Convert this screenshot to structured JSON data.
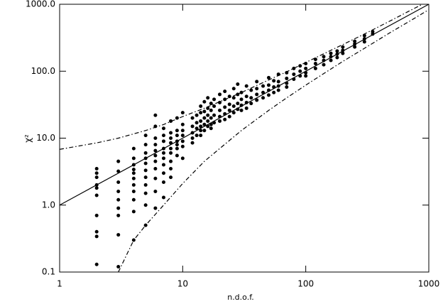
{
  "chart_data": {
    "type": "scatter",
    "xlabel": "n.d.o.f.",
    "ylabel": "χ²",
    "xscale": "log",
    "yscale": "log",
    "xlim": [
      1,
      1000
    ],
    "ylim": [
      0.1,
      1000
    ],
    "xticks": [
      1,
      10,
      100,
      1000
    ],
    "yticks": [
      0.1,
      {
        "value": 1,
        "label": "1.0"
      },
      {
        "value": 10,
        "label": "10.0"
      },
      {
        "value": 100,
        "label": "100.0"
      },
      {
        "value": 1000,
        "label": "1000.0"
      }
    ],
    "series": [
      {
        "type": "scatter",
        "color": "#000000",
        "x": [
          2,
          2,
          2,
          2,
          2,
          2,
          2,
          2,
          2,
          2,
          3,
          3,
          3,
          3,
          3,
          3,
          3,
          3,
          3,
          4,
          4,
          4,
          4,
          4,
          4,
          4,
          4,
          4,
          4,
          4,
          5,
          5,
          5,
          5,
          5,
          5,
          5,
          5,
          5,
          5,
          5,
          6,
          6,
          6,
          6,
          6,
          6,
          6,
          6,
          6,
          6,
          6,
          7,
          7,
          7,
          7,
          7,
          7,
          7,
          7,
          7,
          7,
          8,
          8,
          8,
          8,
          8,
          8,
          8,
          8,
          8,
          9,
          9,
          9,
          9,
          9,
          9,
          9,
          10,
          10,
          10,
          10,
          10,
          10,
          10,
          12,
          12,
          12,
          12,
          12,
          13,
          13,
          13,
          13,
          14,
          14,
          14,
          14,
          14,
          14,
          15,
          15,
          15,
          15,
          15,
          16,
          16,
          16,
          16,
          16,
          17,
          17,
          17,
          17,
          17,
          18,
          18,
          18,
          18,
          20,
          20,
          20,
          20,
          20,
          22,
          22,
          22,
          22,
          22,
          24,
          24,
          24,
          24,
          26,
          26,
          26,
          26,
          28,
          28,
          28,
          28,
          30,
          30,
          30,
          30,
          33,
          33,
          33,
          33,
          36,
          36,
          36,
          40,
          40,
          40,
          40,
          45,
          45,
          45,
          50,
          50,
          50,
          50,
          55,
          55,
          55,
          60,
          60,
          60,
          60,
          70,
          70,
          70,
          70,
          80,
          80,
          80,
          90,
          90,
          90,
          100,
          100,
          100,
          100,
          120,
          120,
          120,
          140,
          140,
          140,
          160,
          160,
          160,
          180,
          180,
          180,
          200,
          200,
          200,
          250,
          250,
          250,
          300,
          300,
          300,
          350,
          350
        ],
        "values": [
          3.5,
          3,
          2.6,
          2,
          1.8,
          1.4,
          0.7,
          0.4,
          0.34,
          0.13,
          4.5,
          3.2,
          2.2,
          1.6,
          1.2,
          0.9,
          0.7,
          0.36,
          0.12,
          7,
          5,
          4,
          3.4,
          3,
          2.5,
          2,
          1.6,
          1.2,
          0.8,
          0.3,
          11,
          8,
          6,
          5,
          4.2,
          3.3,
          2.6,
          2,
          1.5,
          1,
          0.5,
          22,
          15,
          10,
          8,
          6.5,
          5.5,
          4.5,
          3.5,
          2.5,
          1.6,
          0.9,
          14,
          11,
          9,
          7,
          6,
          5,
          4,
          3,
          2.2,
          1.3,
          18,
          12,
          10,
          8.5,
          7,
          6,
          4.5,
          3.5,
          2.6,
          20,
          13,
          11,
          9,
          8,
          7,
          5.5,
          24,
          16,
          13,
          11,
          9,
          7.5,
          5,
          20,
          15,
          12,
          10,
          8.5,
          22,
          17,
          14,
          11,
          30,
          24,
          18,
          15,
          13,
          11,
          35,
          25,
          20,
          16,
          13,
          40,
          28,
          22,
          18,
          15,
          33,
          26,
          20,
          16,
          14,
          38,
          30,
          22,
          17,
          45,
          34,
          26,
          21,
          18,
          50,
          38,
          29,
          23,
          19,
          42,
          32,
          26,
          21,
          55,
          40,
          30,
          24,
          64,
          45,
          33,
          27,
          48,
          38,
          31,
          26,
          60,
          42,
          34,
          28,
          52,
          40,
          33,
          70,
          55,
          45,
          37,
          60,
          48,
          40,
          80,
          62,
          52,
          44,
          72,
          58,
          48,
          90,
          70,
          60,
          52,
          95,
          78,
          66,
          58,
          110,
          90,
          76,
          120,
          100,
          85,
          130,
          110,
          95,
          85,
          150,
          130,
          110,
          165,
          145,
          125,
          185,
          165,
          145,
          200,
          180,
          160,
          230,
          205,
          185,
          280,
          255,
          230,
          340,
          305,
          275,
          390,
          360
        ]
      },
      {
        "type": "line",
        "dash": "solid",
        "color": "#000000",
        "x": [
          1,
          1000
        ],
        "values": [
          1,
          1000
        ]
      },
      {
        "type": "line",
        "dash": "dashdot",
        "color": "#000000",
        "x": [
          1,
          2,
          3,
          5,
          7,
          10,
          15,
          20,
          30,
          50,
          70,
          100,
          200,
          300,
          500,
          700,
          1000
        ],
        "values": [
          6.8,
          8.5,
          10,
          13,
          16,
          21,
          28,
          35,
          48,
          74,
          98,
          135,
          250,
          360,
          580,
          800,
          1120
        ]
      },
      {
        "type": "line",
        "dash": "dashdot",
        "color": "#000000",
        "x": [
          3,
          4,
          5,
          7,
          10,
          15,
          20,
          30,
          50,
          70,
          100,
          200,
          300,
          500,
          700,
          1000
        ],
        "values": [
          0.1,
          0.3,
          0.5,
          1,
          2.1,
          4.5,
          7,
          13,
          26,
          40,
          62,
          140,
          220,
          390,
          560,
          830
        ]
      }
    ]
  }
}
